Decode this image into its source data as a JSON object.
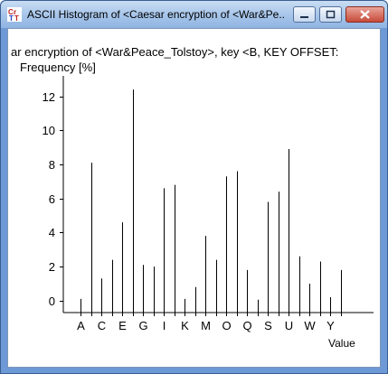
{
  "window": {
    "title": "ASCII Histogram of <Caesar encryption of <War&Pe...",
    "icon": "cryptool-app-icon"
  },
  "buttons": {
    "minimize": "minimize-icon",
    "maximize": "maximize-icon",
    "close": "close-icon"
  },
  "chart_data": {
    "type": "bar",
    "title": "ar encryption of <War&Peace_Tolstoy>, key <B, KEY OFFSET:",
    "ylabel": "Frequency [%]",
    "xlabel": "Value",
    "ylim": [
      -0.7,
      13.2
    ],
    "yticks": [
      "0",
      "2",
      "4",
      "6",
      "8",
      "10",
      "12"
    ],
    "tick_labels": [
      "A",
      "C",
      "E",
      "G",
      "I",
      "K",
      "M",
      "O",
      "Q",
      "S",
      "U",
      "W",
      "Y"
    ],
    "categories": [
      "A",
      "B",
      "C",
      "D",
      "E",
      "F",
      "G",
      "H",
      "I",
      "J",
      "K",
      "L",
      "M",
      "N",
      "O",
      "P",
      "Q",
      "R",
      "S",
      "T",
      "U",
      "V",
      "W",
      "X",
      "Y",
      "Z"
    ],
    "values": [
      0.1,
      8.1,
      1.3,
      2.4,
      4.6,
      12.4,
      2.1,
      2.0,
      6.6,
      6.8,
      0.1,
      0.8,
      3.8,
      2.4,
      7.3,
      7.6,
      1.8,
      0.0,
      5.8,
      6.4,
      8.9,
      2.6,
      1.0,
      2.3,
      0.2,
      1.8
    ],
    "grid": false
  }
}
